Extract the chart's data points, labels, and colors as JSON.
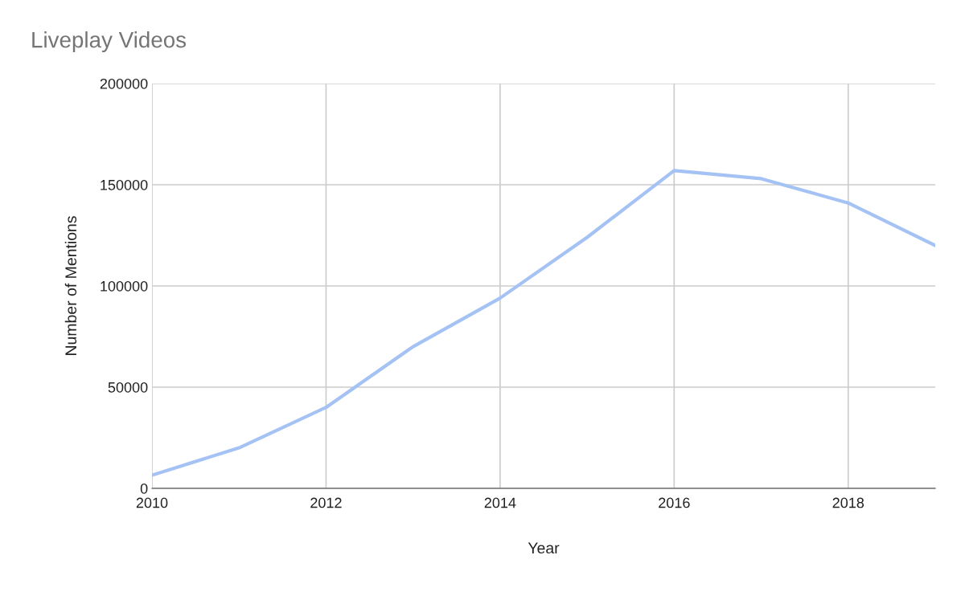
{
  "chart_data": {
    "type": "line",
    "title": "Liveplay Videos",
    "xlabel": "Year",
    "ylabel": "Number of Mentions",
    "x": [
      2010,
      2011,
      2012,
      2013,
      2014,
      2015,
      2016,
      2017,
      2018,
      2019
    ],
    "series": [
      {
        "color": "#a4c2f4",
        "values": [
          6500,
          20000,
          40000,
          70000,
          94000,
          124000,
          157000,
          153000,
          141000,
          120000
        ]
      }
    ],
    "xlim": [
      2010,
      2019
    ],
    "xticks": [
      2010,
      2012,
      2014,
      2016,
      2018
    ],
    "ylim": [
      0,
      200000
    ],
    "yticks": [
      0,
      50000,
      100000,
      150000,
      200000
    ],
    "grid": true,
    "legend": false,
    "marker": "none",
    "line_style": "solid"
  }
}
